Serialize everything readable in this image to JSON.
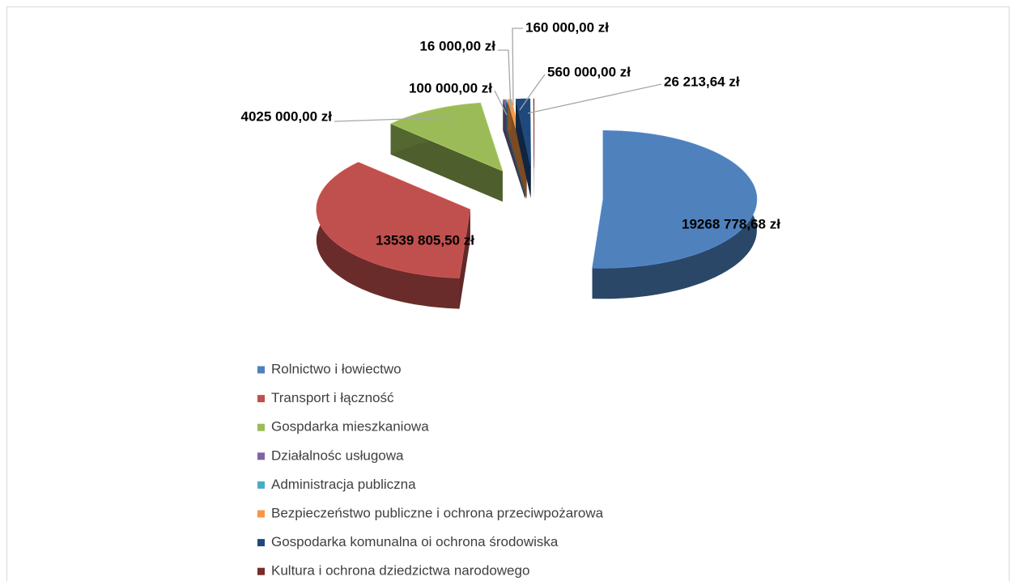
{
  "chart_data": {
    "type": "pie",
    "categories": [
      "Rolnictwo i łowiectwo",
      "Transport i łączność",
      "Gospdarka mieszkaniowa",
      "Działalnośc usługowa",
      "Administracja publiczna",
      "Bezpieczeństwo publiczne i ochrona przeciwpożarowa",
      "Gospodarka komunalna oi ochrona środowiska",
      "Kultura i ochrona dziedzictwa narodowego"
    ],
    "values": [
      19268778.68,
      13539805.5,
      4025000.0,
      100000.0,
      16000.0,
      160000.0,
      560000.0,
      26213.64
    ],
    "value_labels": [
      "19268 778,68 zł",
      "13539 805,50 zł",
      "4025 000,00 zł",
      "100 000,00 zł",
      "16 000,00 zł",
      "160 000,00 zł",
      "560 000,00 zł",
      "26 213,64 zł"
    ],
    "colors": [
      "#4f81bd",
      "#c0504d",
      "#9bbb59",
      "#8064a2",
      "#4bacc6",
      "#f79646",
      "#1f497d",
      "#772c2a"
    ],
    "legend": "bottom"
  }
}
